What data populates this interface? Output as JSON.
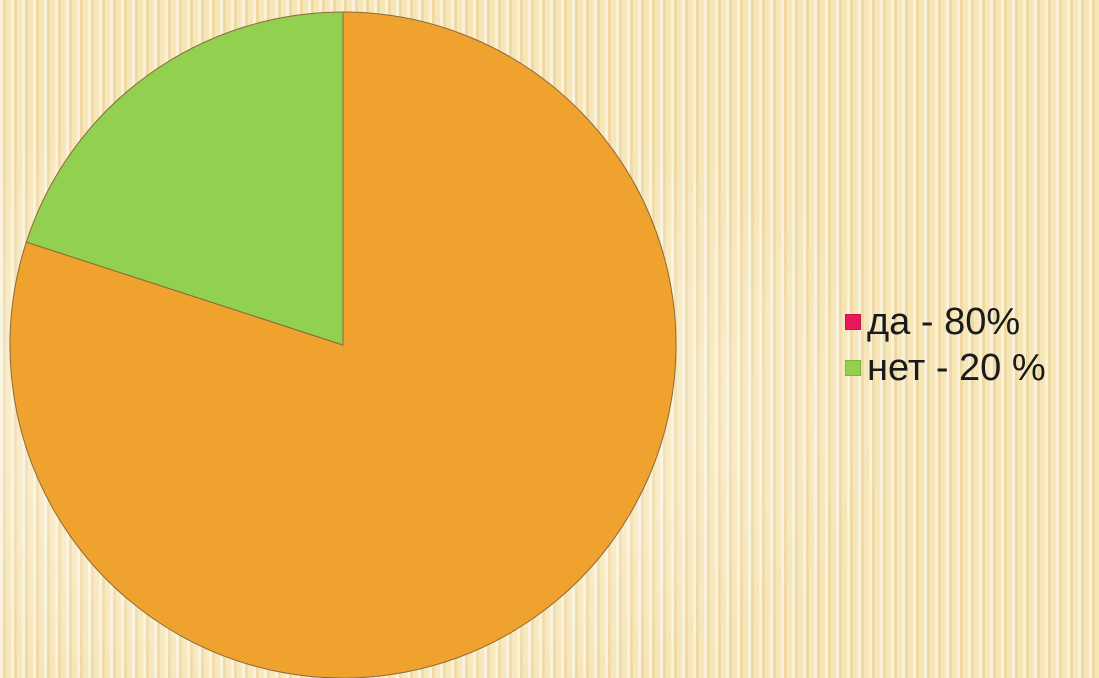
{
  "chart_data": {
    "type": "pie",
    "categories": [
      "да",
      "нет"
    ],
    "values": [
      80,
      20
    ],
    "legend": {
      "placement": "right",
      "entries": [
        {
          "label": "да - 80%",
          "color": "#e8185a"
        },
        {
          "label": "нет - 20 %",
          "color": "#92d050"
        }
      ]
    },
    "slice_colors": [
      "#f0a22f",
      "#92d050"
    ]
  }
}
